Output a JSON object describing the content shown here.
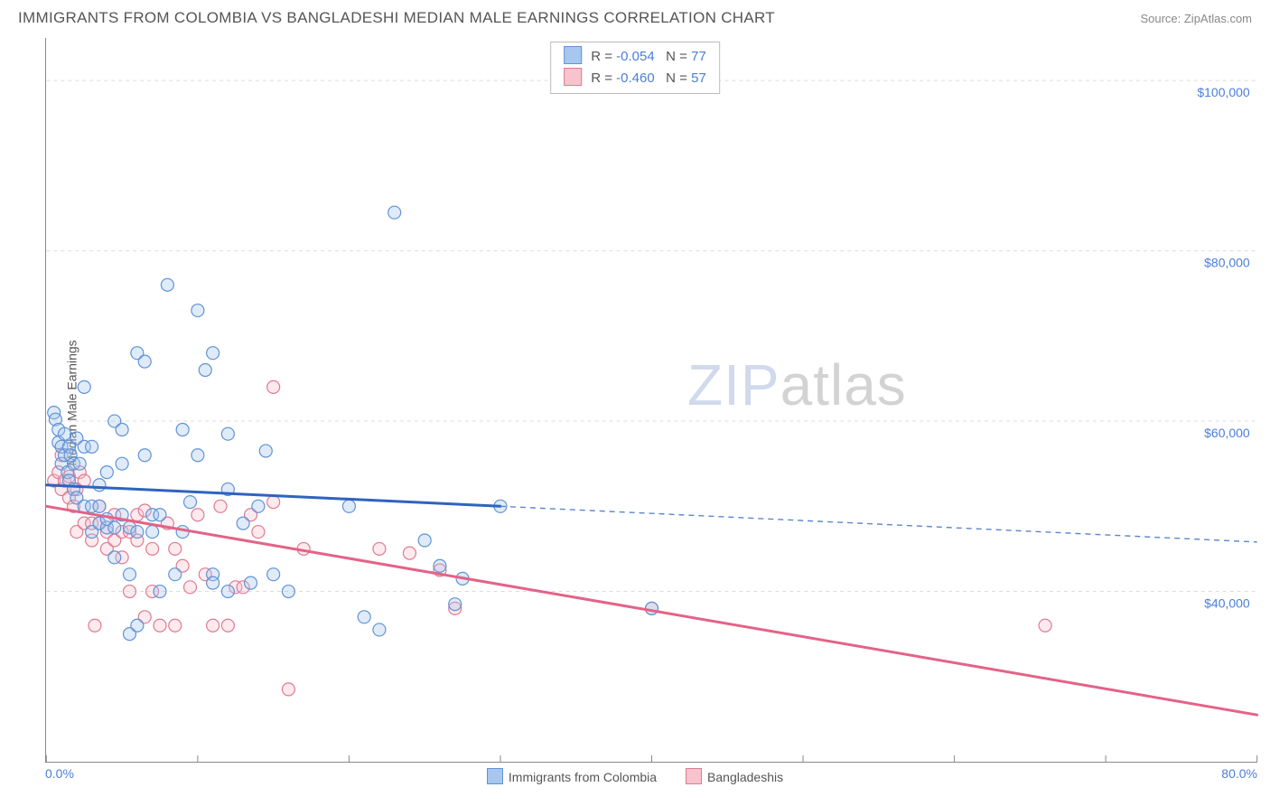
{
  "title": "IMMIGRANTS FROM COLOMBIA VS BANGLADESHI MEDIAN MALE EARNINGS CORRELATION CHART",
  "source_label": "Source: ZipAtlas.com",
  "y_axis_label": "Median Male Earnings",
  "watermark": {
    "part1": "ZIP",
    "part2": "atlas"
  },
  "chart": {
    "type": "scatter",
    "x_range": [
      0,
      80
    ],
    "y_range": [
      20000,
      105000
    ],
    "x_tick_min_label": "0.0%",
    "x_tick_max_label": "80.0%",
    "y_ticks": [
      {
        "value": 40000,
        "label": "$40,000"
      },
      {
        "value": 60000,
        "label": "$60,000"
      },
      {
        "value": 80000,
        "label": "$80,000"
      },
      {
        "value": 100000,
        "label": "$100,000"
      }
    ],
    "grid_color": "#dcdcdc",
    "grid_dash": "4,4",
    "axis_color": "#888888",
    "tick_label_color": "#4a7fd8",
    "background_color": "#ffffff",
    "marker_radius": 7,
    "marker_stroke_width": 1.2,
    "marker_fill_opacity": 0.35,
    "series": [
      {
        "name": "Immigrants from Colombia",
        "color_fill": "#a7c7ee",
        "color_stroke": "#5f93d6",
        "R": "-0.054",
        "N": "77",
        "trend": {
          "solid_color": "#2f63c0",
          "solid_width": 3,
          "solid_x_from": 0,
          "solid_y_from": 52500,
          "solid_x_to": 30,
          "solid_y_to": 50000,
          "dash_color": "#5b86cc",
          "dash_width": 1.4,
          "dash_pattern": "6,5",
          "dash_x_to": 80,
          "dash_y_to": 45800
        },
        "points": [
          [
            0.5,
            61000
          ],
          [
            0.6,
            60200
          ],
          [
            0.8,
            57500
          ],
          [
            0.8,
            59000
          ],
          [
            1.0,
            55000
          ],
          [
            1.0,
            57000
          ],
          [
            1.2,
            56000
          ],
          [
            1.2,
            58500
          ],
          [
            1.4,
            54000
          ],
          [
            1.5,
            57000
          ],
          [
            1.5,
            53000
          ],
          [
            1.6,
            56000
          ],
          [
            1.8,
            55000
          ],
          [
            1.8,
            52000
          ],
          [
            2.0,
            51000
          ],
          [
            2.0,
            58000
          ],
          [
            2.2,
            55000
          ],
          [
            2.5,
            57000
          ],
          [
            2.5,
            64000
          ],
          [
            2.5,
            50000
          ],
          [
            3.0,
            47000
          ],
          [
            3.0,
            50000
          ],
          [
            3.0,
            57000
          ],
          [
            3.5,
            48000
          ],
          [
            3.5,
            50000
          ],
          [
            3.5,
            52500
          ],
          [
            4.0,
            47500
          ],
          [
            4.0,
            54000
          ],
          [
            4.0,
            48500
          ],
          [
            4.5,
            60000
          ],
          [
            4.5,
            44000
          ],
          [
            4.5,
            47500
          ],
          [
            5.0,
            49000
          ],
          [
            5.0,
            59000
          ],
          [
            5.0,
            55000
          ],
          [
            5.5,
            35000
          ],
          [
            5.5,
            47500
          ],
          [
            5.5,
            42000
          ],
          [
            6.0,
            36000
          ],
          [
            6.0,
            47000
          ],
          [
            6.0,
            68000
          ],
          [
            6.5,
            67000
          ],
          [
            6.5,
            56000
          ],
          [
            7.0,
            47000
          ],
          [
            7.0,
            49000
          ],
          [
            7.5,
            49000
          ],
          [
            7.5,
            40000
          ],
          [
            8.0,
            76000
          ],
          [
            8.5,
            42000
          ],
          [
            9.0,
            59000
          ],
          [
            9.0,
            47000
          ],
          [
            9.5,
            50500
          ],
          [
            10.0,
            73000
          ],
          [
            10.0,
            56000
          ],
          [
            10.5,
            66000
          ],
          [
            11.0,
            42000
          ],
          [
            11.0,
            41000
          ],
          [
            11.0,
            68000
          ],
          [
            12.0,
            58500
          ],
          [
            12.0,
            52000
          ],
          [
            12.0,
            40000
          ],
          [
            13.0,
            48000
          ],
          [
            13.5,
            41000
          ],
          [
            14.0,
            50000
          ],
          [
            14.5,
            56500
          ],
          [
            15.0,
            42000
          ],
          [
            16.0,
            40000
          ],
          [
            20.0,
            50000
          ],
          [
            21.0,
            37000
          ],
          [
            22.0,
            35500
          ],
          [
            23.0,
            84500
          ],
          [
            25.0,
            46000
          ],
          [
            26.0,
            43000
          ],
          [
            27.0,
            38500
          ],
          [
            27.5,
            41500
          ],
          [
            30.0,
            50000
          ],
          [
            40.0,
            38000
          ]
        ]
      },
      {
        "name": "Bangladeshis",
        "color_fill": "#f7c4ce",
        "color_stroke": "#e07a93",
        "R": "-0.460",
        "N": "57",
        "trend": {
          "solid_color": "#e36387",
          "solid_width": 3,
          "solid_x_from": 0,
          "solid_y_from": 50000,
          "solid_x_to": 80,
          "solid_y_to": 25500
        },
        "points": [
          [
            0.5,
            53000
          ],
          [
            0.8,
            54000
          ],
          [
            1.0,
            52000
          ],
          [
            1.0,
            56000
          ],
          [
            1.2,
            53000
          ],
          [
            1.5,
            53500
          ],
          [
            1.5,
            51000
          ],
          [
            1.8,
            50000
          ],
          [
            2.0,
            52000
          ],
          [
            2.0,
            47000
          ],
          [
            2.2,
            54000
          ],
          [
            2.5,
            53000
          ],
          [
            2.5,
            48000
          ],
          [
            3.0,
            48000
          ],
          [
            3.0,
            46000
          ],
          [
            3.2,
            36000
          ],
          [
            3.5,
            48000
          ],
          [
            3.5,
            50000
          ],
          [
            4.0,
            45000
          ],
          [
            4.0,
            47000
          ],
          [
            4.5,
            49000
          ],
          [
            4.5,
            46000
          ],
          [
            5.0,
            47000
          ],
          [
            5.0,
            44000
          ],
          [
            5.5,
            47000
          ],
          [
            5.5,
            40000
          ],
          [
            6.0,
            46000
          ],
          [
            6.0,
            49000
          ],
          [
            6.5,
            37000
          ],
          [
            6.5,
            49500
          ],
          [
            7.0,
            45000
          ],
          [
            7.0,
            40000
          ],
          [
            7.5,
            36000
          ],
          [
            8.0,
            48000
          ],
          [
            8.5,
            45000
          ],
          [
            8.5,
            36000
          ],
          [
            9.0,
            43000
          ],
          [
            9.5,
            40500
          ],
          [
            10.0,
            49000
          ],
          [
            10.5,
            42000
          ],
          [
            11.0,
            36000
          ],
          [
            11.5,
            50000
          ],
          [
            12.0,
            36000
          ],
          [
            12.5,
            40500
          ],
          [
            13.0,
            40500
          ],
          [
            13.5,
            49000
          ],
          [
            14.0,
            47000
          ],
          [
            15.0,
            64000
          ],
          [
            15.0,
            50500
          ],
          [
            16.0,
            28500
          ],
          [
            17.0,
            45000
          ],
          [
            22.0,
            45000
          ],
          [
            24.0,
            44500
          ],
          [
            26.0,
            42500
          ],
          [
            27.0,
            38000
          ],
          [
            40.0,
            38000
          ],
          [
            66.0,
            36000
          ]
        ]
      }
    ]
  },
  "bottom_legend": [
    {
      "label": "Immigrants from Colombia",
      "fill": "#a7c7ee",
      "stroke": "#5f93d6"
    },
    {
      "label": "Bangladeshis",
      "fill": "#f7c4ce",
      "stroke": "#e07a93"
    }
  ]
}
